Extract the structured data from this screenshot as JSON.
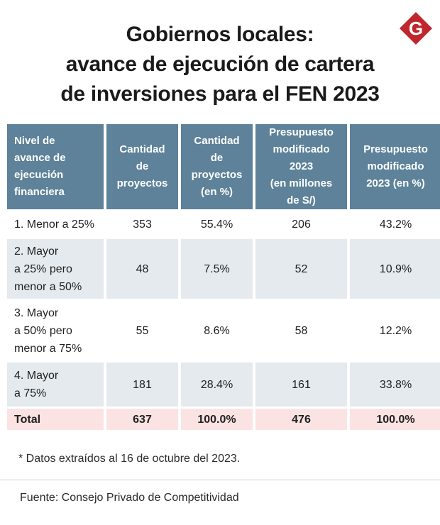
{
  "logo": {
    "letter": "G",
    "color": "#c0272d"
  },
  "title": {
    "line1": "Gobiernos locales:",
    "line2": "avance de ejecución de cartera",
    "line3": "de inversiones para el FEN 2023"
  },
  "table": {
    "header_color": "#5d8299",
    "headers": [
      "Nivel de\navance de\nejecución\nfinanciera",
      "Cantidad\nde\nproyectos",
      "Cantidad\nde\nproyectos\n(en %)",
      "Presupuesto\nmodificado\n2023\n(en millones\nde S/)",
      "Presupuesto\nmodificado\n2023 (en %)"
    ],
    "rows": [
      {
        "nivel": "1. Menor a 25%",
        "cantidad": "353",
        "cantidad_pct": "55.4%",
        "presupuesto": "206",
        "presupuesto_pct": "43.2%"
      },
      {
        "nivel": "2. Mayor\n a 25% pero\nmenor a 50%",
        "cantidad": "48",
        "cantidad_pct": "7.5%",
        "presupuesto": "52",
        "presupuesto_pct": "10.9%"
      },
      {
        "nivel": "3. Mayor\na 50% pero\nmenor a 75%",
        "cantidad": "55",
        "cantidad_pct": "8.6%",
        "presupuesto": "58",
        "presupuesto_pct": "12.2%"
      },
      {
        "nivel": "4. Mayor\na 75%",
        "cantidad": "181",
        "cantidad_pct": "28.4%",
        "presupuesto": "161",
        "presupuesto_pct": "33.8%"
      }
    ],
    "total": {
      "nivel": "Total",
      "cantidad": "637",
      "cantidad_pct": "100.0%",
      "presupuesto": "476",
      "presupuesto_pct": "100.0%"
    }
  },
  "note": "* Datos extraídos al 16 de octubre del 2023.",
  "source": "Fuente: Consejo Privado de Competitividad"
}
